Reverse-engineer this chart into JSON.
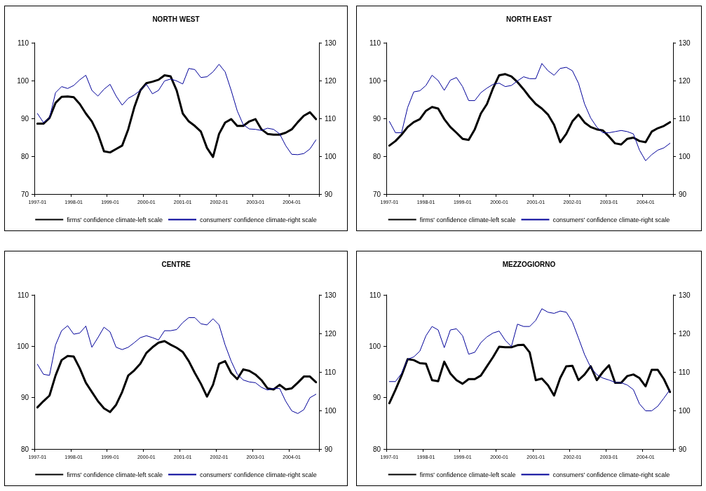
{
  "chart_data": [
    {
      "type": "line",
      "title": "NORTH WEST",
      "categories": [
        "1997-01",
        null,
        null,
        null,
        null,
        null,
        "1998-01",
        null,
        null,
        null,
        null,
        null,
        "1999-01",
        null,
        null,
        null,
        null,
        null,
        "2000-01",
        null,
        null,
        null,
        null,
        null,
        "2001-01",
        null,
        null,
        null,
        null,
        null,
        "2002-01",
        null,
        null,
        null,
        null,
        null,
        "2003-01",
        null,
        null,
        null,
        null,
        null,
        "2004-01",
        null,
        null,
        null,
        null
      ],
      "series": [
        {
          "name": "firms' confidence climate-left scale",
          "color": "#000000",
          "values": [
            88.6,
            88.6,
            90.1,
            94.1,
            95.7,
            95.8,
            95.6,
            93.8,
            91.3,
            89.2,
            85.9,
            81.3,
            81.0,
            81.9,
            82.8,
            87.1,
            92.9,
            97.4,
            99.3,
            99.7,
            100.2,
            101.4,
            101.1,
            97.4,
            91.3,
            89.2,
            88.0,
            86.5,
            82.2,
            79.8,
            85.9,
            88.9,
            89.8,
            88.0,
            88.0,
            89.2,
            89.8,
            87.1,
            85.9,
            85.7,
            85.7,
            86.2,
            87.1,
            89.0,
            90.7,
            91.6,
            89.8
          ]
        },
        {
          "name": "consumers' confidence climate-right scale",
          "color": "#000099",
          "axis": "y2",
          "values": [
            111.3,
            108.9,
            110.1,
            116.8,
            118.4,
            117.9,
            118.7,
            120.2,
            121.4,
            117.4,
            115.9,
            117.7,
            119.0,
            115.9,
            113.5,
            115.3,
            116.2,
            117.4,
            119.0,
            116.5,
            117.4,
            119.9,
            120.4,
            119.9,
            119.1,
            123.2,
            122.9,
            120.8,
            121.0,
            122.3,
            124.3,
            122.3,
            117.4,
            112.0,
            108.3,
            107.2,
            107.1,
            106.8,
            107.4,
            107.1,
            105.9,
            102.8,
            100.5,
            100.4,
            100.7,
            101.9,
            104.3
          ]
        }
      ],
      "ylim": [
        70,
        110
      ],
      "yticks": [
        70,
        80,
        90,
        100,
        110
      ],
      "y2lim": [
        90,
        130
      ],
      "y2ticks": [
        90,
        100,
        110,
        120,
        130
      ],
      "legend": "bottom",
      "marker": "none",
      "grid": false
    },
    {
      "type": "line",
      "title": "NORTH EAST",
      "categories": [
        "1997-01",
        null,
        null,
        null,
        null,
        null,
        "1998-01",
        null,
        null,
        null,
        null,
        null,
        "1999-01",
        null,
        null,
        null,
        null,
        null,
        "2000-01",
        null,
        null,
        null,
        null,
        null,
        "2001-01",
        null,
        null,
        null,
        null,
        null,
        "2002-01",
        null,
        null,
        null,
        null,
        null,
        "2003-01",
        null,
        null,
        null,
        null,
        null,
        "2004-01",
        null,
        null,
        null,
        null
      ],
      "series": [
        {
          "name": "firms' confidence climate-left scale",
          "color": "#000000",
          "values": [
            82.8,
            84.0,
            85.7,
            87.7,
            89.0,
            89.8,
            92.0,
            93.0,
            92.6,
            89.8,
            87.7,
            86.2,
            84.6,
            84.3,
            87.1,
            91.3,
            93.8,
            98.0,
            101.4,
            101.7,
            101.1,
            99.6,
            97.7,
            95.6,
            93.8,
            92.6,
            91.0,
            88.3,
            83.7,
            85.9,
            89.2,
            91.0,
            88.9,
            87.7,
            87.1,
            86.8,
            85.2,
            83.4,
            83.1,
            84.6,
            84.9,
            84.0,
            83.7,
            86.5,
            87.4,
            88.0,
            89.0
          ]
        },
        {
          "name": "consumers' confidence climate-right scale",
          "color": "#000099",
          "axis": "y2",
          "values": [
            109.2,
            106.2,
            106.2,
            112.9,
            117.0,
            117.3,
            118.7,
            121.4,
            120.0,
            117.4,
            120.1,
            120.8,
            118.4,
            114.7,
            114.7,
            116.8,
            118.0,
            119.0,
            119.3,
            118.4,
            118.7,
            119.9,
            121.0,
            120.5,
            120.5,
            124.5,
            122.6,
            121.4,
            123.2,
            123.5,
            122.6,
            119.3,
            113.8,
            110.1,
            107.7,
            106.2,
            106.2,
            106.5,
            106.8,
            106.5,
            105.9,
            101.6,
            98.8,
            100.4,
            101.6,
            102.2,
            103.4
          ]
        }
      ],
      "ylim": [
        70,
        110
      ],
      "yticks": [
        70,
        80,
        90,
        100,
        110
      ],
      "y2lim": [
        90,
        130
      ],
      "y2ticks": [
        90,
        100,
        110,
        120,
        130
      ],
      "legend": "bottom",
      "marker": "none",
      "grid": false
    },
    {
      "type": "line",
      "title": "CENTRE",
      "categories": [
        "1997-01",
        null,
        null,
        null,
        null,
        null,
        "1998-01",
        null,
        null,
        null,
        null,
        null,
        "1999-01",
        null,
        null,
        null,
        null,
        null,
        "2000-01",
        null,
        null,
        null,
        null,
        null,
        "2001-01",
        null,
        null,
        null,
        null,
        null,
        "2002-01",
        null,
        null,
        null,
        null,
        null,
        "2003-01",
        null,
        null,
        null,
        null,
        null,
        "2004-01",
        null,
        null,
        null,
        null
      ],
      "series": [
        {
          "name": "firms' confidence climate-left scale",
          "color": "#000000",
          "values": [
            88.1,
            89.3,
            90.4,
            94.3,
            97.3,
            98.1,
            98.0,
            95.7,
            92.9,
            91.1,
            89.3,
            87.9,
            87.2,
            88.6,
            91.1,
            94.3,
            95.3,
            96.6,
            98.7,
            99.8,
            100.7,
            101.0,
            100.3,
            99.7,
            98.9,
            97.1,
            94.8,
            92.7,
            90.2,
            92.5,
            96.6,
            97.1,
            94.8,
            93.6,
            95.5,
            95.2,
            94.5,
            93.4,
            91.8,
            91.6,
            92.5,
            91.6,
            91.8,
            92.9,
            94.1,
            94.1,
            93.0
          ]
        },
        {
          "name": "consumers' confidence climate-right scale",
          "color": "#000099",
          "axis": "y2",
          "values": [
            112.0,
            109.4,
            109.1,
            117.0,
            120.7,
            122.0,
            119.8,
            120.1,
            121.9,
            116.4,
            118.9,
            121.6,
            120.4,
            116.4,
            115.8,
            116.4,
            117.6,
            118.9,
            119.4,
            118.9,
            118.3,
            120.7,
            120.7,
            121.0,
            122.8,
            124.1,
            124.1,
            122.5,
            122.2,
            123.8,
            122.2,
            117.0,
            112.8,
            109.4,
            107.9,
            107.4,
            107.2,
            106.0,
            105.3,
            105.7,
            105.7,
            102.4,
            99.9,
            99.2,
            100.2,
            103.3,
            104.2
          ]
        }
      ],
      "ylim": [
        80,
        110
      ],
      "yticks": [
        80,
        90,
        100,
        110
      ],
      "y2lim": [
        90,
        130
      ],
      "y2ticks": [
        90,
        100,
        110,
        120,
        130
      ],
      "legend": "bottom",
      "marker": "none",
      "grid": false
    },
    {
      "type": "line",
      "title": "MEZZOGIORNO",
      "categories": [
        "1997-01",
        null,
        null,
        null,
        null,
        null,
        "1998-01",
        null,
        null,
        null,
        null,
        null,
        "1999-01",
        null,
        null,
        null,
        null,
        null,
        "2000-01",
        null,
        null,
        null,
        null,
        null,
        "2001-01",
        null,
        null,
        null,
        null,
        null,
        "2002-01",
        null,
        null,
        null,
        null,
        null,
        "2003-01",
        null,
        null,
        null,
        null,
        null,
        "2004-01",
        null,
        null,
        null,
        null
      ],
      "series": [
        {
          "name": "firms' confidence climate-left scale",
          "color": "#000000",
          "values": [
            88.9,
            91.5,
            94.3,
            97.5,
            97.3,
            96.7,
            96.6,
            93.4,
            93.2,
            97.0,
            94.7,
            93.4,
            92.7,
            93.6,
            93.6,
            94.3,
            96.1,
            97.9,
            99.9,
            99.8,
            99.8,
            100.2,
            100.3,
            98.8,
            93.4,
            93.7,
            92.4,
            90.4,
            93.8,
            96.1,
            96.2,
            93.4,
            94.5,
            96.1,
            93.4,
            95.0,
            96.3,
            92.9,
            92.9,
            94.2,
            94.5,
            93.8,
            92.2,
            95.4,
            95.4,
            93.6,
            91.1
          ]
        },
        {
          "name": "consumers' confidence climate-right scale",
          "color": "#000099",
          "axis": "y2",
          "values": [
            107.5,
            107.5,
            109.6,
            113.3,
            113.9,
            115.4,
            119.4,
            121.8,
            120.9,
            116.3,
            120.9,
            121.2,
            119.4,
            114.6,
            115.1,
            117.6,
            119.1,
            120.1,
            120.6,
            118.2,
            116.6,
            122.4,
            121.8,
            121.8,
            123.4,
            126.4,
            125.5,
            125.2,
            125.8,
            125.5,
            123.0,
            118.8,
            114.5,
            111.2,
            109.3,
            108.4,
            107.9,
            107.3,
            107.2,
            106.6,
            105.4,
            101.7,
            99.9,
            99.9,
            101.1,
            103.2,
            105.4
          ]
        }
      ],
      "ylim": [
        80,
        110
      ],
      "yticks": [
        80,
        90,
        100,
        110
      ],
      "y2lim": [
        90,
        130
      ],
      "y2ticks": [
        90,
        100,
        110,
        120,
        130
      ],
      "legend": "bottom",
      "marker": "none",
      "grid": false
    }
  ]
}
